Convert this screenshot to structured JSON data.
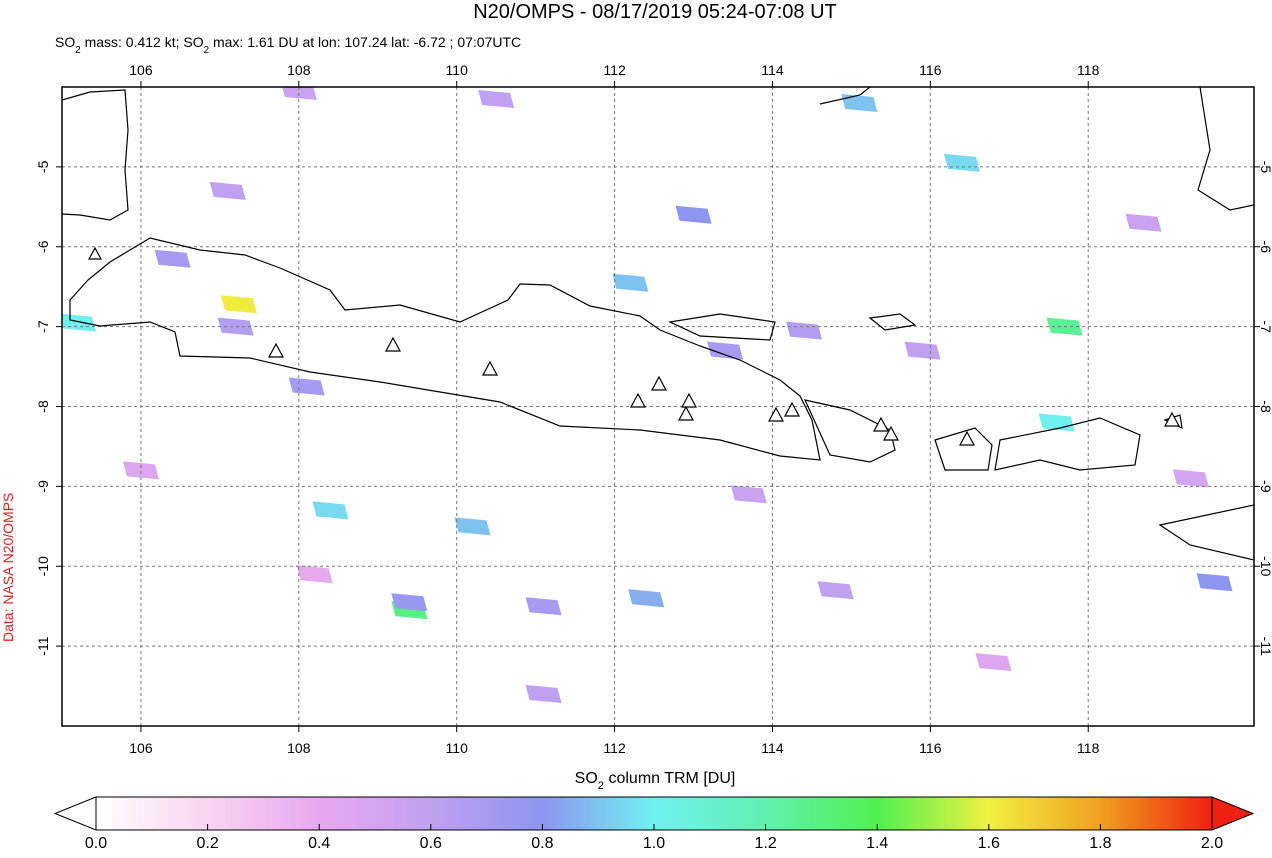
{
  "map": {
    "title": "N20/OMPS - 08/17/2019 05:24-07:08 UT",
    "subtitle": [
      "SO",
      "2",
      " mass: 0.412 kt; SO",
      "2",
      " max: 1.61 DU at lon: 107.24 lat: -6.72 ; 07:07UTC"
    ],
    "side_label": "Data: NASA N20/OMPS",
    "xlim": [
      105,
      120.1
    ],
    "ylim": [
      -12,
      -4
    ],
    "xticks": [
      106,
      108,
      110,
      112,
      114,
      116,
      118
    ],
    "yticks": [
      -5,
      -6,
      -7,
      -8,
      -9,
      -10,
      -11
    ],
    "grid": true,
    "colorbar": {
      "label": [
        "SO",
        "2",
        " column TRM [DU]"
      ],
      "ticks": [
        {
          "value": 0,
          "label": "0.0"
        },
        {
          "value": 0.2,
          "label": "0.2"
        },
        {
          "value": 0.4,
          "label": "0.4"
        },
        {
          "value": 0.6,
          "label": "0.6"
        },
        {
          "value": 0.8,
          "label": "0.8"
        },
        {
          "value": 1,
          "label": "1.0"
        },
        {
          "value": 1.2,
          "label": "1.2"
        },
        {
          "value": 1.4,
          "label": "1.4"
        },
        {
          "value": 1.6,
          "label": "1.6"
        },
        {
          "value": 1.8,
          "label": "1.8"
        },
        {
          "value": 2,
          "label": "2.0"
        }
      ],
      "colormap": [
        "#ffffff",
        "#f8d4f0",
        "#e8a8f0",
        "#c0a0f0",
        "#8c96f0",
        "#70f0f0",
        "#60f0b0",
        "#50f050",
        "#f0f040",
        "#f0a020",
        "#f02010"
      ]
    },
    "pixels": [
      {
        "lon": 107.24,
        "lat": -6.72,
        "value": 1.61
      },
      {
        "lon": 109.4,
        "lat": -10.55,
        "value": 1.3
      },
      {
        "lon": 109.4,
        "lat": -10.45,
        "value": 0.75
      },
      {
        "lon": 108.4,
        "lat": -9.3,
        "value": 0.95
      },
      {
        "lon": 105.2,
        "lat": -6.95,
        "value": 1.0
      },
      {
        "lon": 110.2,
        "lat": -9.5,
        "value": 0.9
      },
      {
        "lon": 117.7,
        "lat": -7.0,
        "value": 1.25
      },
      {
        "lon": 117.6,
        "lat": -8.2,
        "value": 1.0
      },
      {
        "lon": 112.2,
        "lat": -6.45,
        "value": 0.9
      },
      {
        "lon": 116.4,
        "lat": -4.95,
        "value": 0.95
      },
      {
        "lon": 106.4,
        "lat": -6.15,
        "value": 0.7
      },
      {
        "lon": 107.2,
        "lat": -7.0,
        "value": 0.65
      },
      {
        "lon": 108.1,
        "lat": -7.75,
        "value": 0.7
      },
      {
        "lon": 111.1,
        "lat": -10.5,
        "value": 0.7
      },
      {
        "lon": 112.4,
        "lat": -10.4,
        "value": 0.85
      },
      {
        "lon": 113.4,
        "lat": -7.3,
        "value": 0.7
      },
      {
        "lon": 114.4,
        "lat": -7.05,
        "value": 0.65
      },
      {
        "lon": 115.1,
        "lat": -4.2,
        "value": 0.9
      },
      {
        "lon": 119.6,
        "lat": -10.2,
        "value": 0.8
      },
      {
        "lon": 107.1,
        "lat": -5.3,
        "value": 0.6
      },
      {
        "lon": 110.5,
        "lat": -4.15,
        "value": 0.6
      },
      {
        "lon": 108.0,
        "lat": -4.05,
        "value": 0.55
      },
      {
        "lon": 111.1,
        "lat": -11.6,
        "value": 0.6
      },
      {
        "lon": 113.7,
        "lat": -9.1,
        "value": 0.55
      },
      {
        "lon": 114.8,
        "lat": -10.3,
        "value": 0.6
      },
      {
        "lon": 115.9,
        "lat": -7.3,
        "value": 0.6
      },
      {
        "lon": 118.7,
        "lat": -5.7,
        "value": 0.55
      },
      {
        "lon": 106.0,
        "lat": -8.8,
        "value": 0.45
      },
      {
        "lon": 108.2,
        "lat": -10.1,
        "value": 0.4
      },
      {
        "lon": 113.0,
        "lat": -5.6,
        "value": 0.8
      },
      {
        "lon": 119.3,
        "lat": -8.9,
        "value": 0.5
      },
      {
        "lon": 116.8,
        "lat": -11.2,
        "value": 0.45
      }
    ]
  }
}
